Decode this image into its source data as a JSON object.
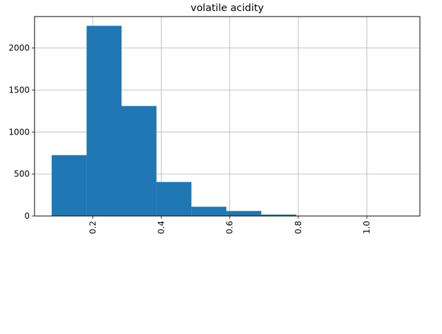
{
  "chart_data": {
    "type": "bar",
    "title": "volatile acidity",
    "xlabel": "",
    "ylabel": "",
    "grid": true,
    "bar_color": "#1f77b4",
    "xlim": [
      0.03,
      1.155
    ],
    "ylim": [
      0,
      2375
    ],
    "x_ticks": [
      {
        "value": 0.2,
        "label": "0.2"
      },
      {
        "value": 0.4,
        "label": "0.4"
      },
      {
        "value": 0.6,
        "label": "0.6"
      },
      {
        "value": 0.8,
        "label": "0.8"
      },
      {
        "value": 1.0,
        "label": "1.0"
      }
    ],
    "y_ticks": [
      {
        "value": 0,
        "label": "0"
      },
      {
        "value": 500,
        "label": "500"
      },
      {
        "value": 1000,
        "label": "1000"
      },
      {
        "value": 1500,
        "label": "1500"
      },
      {
        "value": 2000,
        "label": "2000"
      }
    ],
    "x_tick_rotation": 90,
    "bins": [
      {
        "x0": 0.08,
        "x1": 0.182,
        "count": 725
      },
      {
        "x0": 0.182,
        "x1": 0.284,
        "count": 2265
      },
      {
        "x0": 0.284,
        "x1": 0.386,
        "count": 1310
      },
      {
        "x0": 0.386,
        "x1": 0.488,
        "count": 405
      },
      {
        "x0": 0.488,
        "x1": 0.59,
        "count": 110
      },
      {
        "x0": 0.59,
        "x1": 0.692,
        "count": 60
      },
      {
        "x0": 0.692,
        "x1": 0.794,
        "count": 17
      },
      {
        "x0": 0.794,
        "x1": 0.896,
        "count": 4
      },
      {
        "x0": 0.896,
        "x1": 0.998,
        "count": 1
      },
      {
        "x0": 0.998,
        "x1": 1.1,
        "count": 1
      }
    ]
  }
}
